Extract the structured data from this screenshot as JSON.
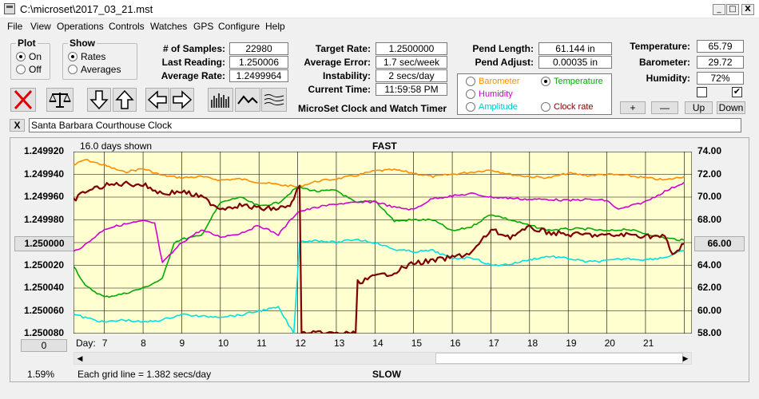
{
  "window": {
    "title": "C:\\microset\\2017_03_21.mst",
    "minimize": "_",
    "maximize": "□",
    "close": "X"
  },
  "menu": [
    "File",
    "View",
    "Operations",
    "Controls",
    "Watches",
    "GPS",
    "Configure",
    "Help"
  ],
  "plot": {
    "title": "Plot",
    "on": "On",
    "off": "Off",
    "selected": "On"
  },
  "show": {
    "title": "Show",
    "rates": "Rates",
    "averages": "Averages",
    "selected": "Rates"
  },
  "stats": {
    "samples_label": "# of Samples:",
    "samples": "22980",
    "last_reading_label": "Last Reading:",
    "last_reading": "1.250006",
    "average_rate_label": "Average Rate:",
    "average_rate": "1.2499964",
    "target_rate_label": "Target Rate:",
    "target_rate": "1.2500000",
    "average_error_label": "Average Error:",
    "average_error": "1.7 sec/week",
    "instability_label": "Instability:",
    "instability": "2 secs/day",
    "current_time_label": "Current Time:",
    "current_time": "11:59:58 PM",
    "pend_length_label": "Pend Length:",
    "pend_length": "61.144 in",
    "pend_adjust_label": "Pend Adjust:",
    "pend_adjust": "0.00035 in",
    "temperature_label": "Temperature:",
    "temperature": "65.79",
    "barometer_label": "Barometer:",
    "barometer": "29.72",
    "humidity_label": "Humidity:",
    "humidity": "72%"
  },
  "app_name": "MicroSet Clock and Watch Timer",
  "legend": {
    "barometer": "Barometer",
    "temperature": "Temperature",
    "humidity": "Humidity",
    "amplitude": "Amplitude",
    "clock_rate": "Clock rate",
    "selected": "Temperature"
  },
  "colors": {
    "barometer": "#ff8c00",
    "temperature": "#00aa00",
    "humidity": "#d000d0",
    "amplitude": "#00e0e0",
    "clock_rate": "#800000",
    "plot_bg": "#ffffd0",
    "grid": "#000000"
  },
  "scale_buttons": {
    "plus": "+",
    "minus": "—",
    "up": "Up",
    "down": "Down"
  },
  "checkboxes": {
    "left_checked": false,
    "right_checked": true,
    "right_mark": "✔"
  },
  "clock_name": "Santa Barbara Courthouse Clock",
  "clear_button": "X",
  "chart": {
    "days_shown": "16.0 days shown",
    "fast_label": "FAST",
    "slow_label": "SLOW",
    "grid_note": "Each grid line = 1.382 secs/day",
    "left_ticks": [
      "1.249920",
      "1.249940",
      "1.249960",
      "1.249980",
      "1.250000",
      "1.250020",
      "1.250040",
      "1.250060",
      "1.250080"
    ],
    "right_ticks": [
      "74.00",
      "72.00",
      "70.00",
      "68.00",
      "66.00",
      "64.00",
      "62.00",
      "60.00",
      "58.00"
    ],
    "left_center_button": "1.250000",
    "right_center_button": "66.00",
    "bottom_left_button": "0",
    "percent": "1.59%",
    "day_prefix": "Day:",
    "days": [
      "7",
      "8",
      "9",
      "10",
      "11",
      "12",
      "13",
      "14",
      "15",
      "16",
      "17",
      "18",
      "19",
      "20",
      "21"
    ]
  },
  "chart_data": {
    "type": "line",
    "xlabel": "Day:",
    "x_range": [
      6.2,
      22.2
    ],
    "left_axis": {
      "ylim": [
        1.24992,
        1.25008
      ],
      "inverted": true
    },
    "right_axis": {
      "ylim": [
        58,
        74
      ]
    },
    "series": [
      {
        "name": "Barometer",
        "axis": "right",
        "color": "#ff8c00",
        "x": [
          6.2,
          6.5,
          7.0,
          7.5,
          8.0,
          8.5,
          9.0,
          9.5,
          10.0,
          10.5,
          11.0,
          11.5,
          12.0,
          12.5,
          13.0,
          13.5,
          14.0,
          14.5,
          15.0,
          15.5,
          16.0,
          16.5,
          17.0,
          17.5,
          18.0,
          18.5,
          19.0,
          19.5,
          20.0,
          20.5,
          21.0,
          21.5,
          22.0
        ],
        "y": [
          72.8,
          73.3,
          72.8,
          72.2,
          72.5,
          71.9,
          71.7,
          71.8,
          71.5,
          71.6,
          71.3,
          71.1,
          70.9,
          71.4,
          71.6,
          71.9,
          72.3,
          72.4,
          72.1,
          71.8,
          72.0,
          72.2,
          72.4,
          72.0,
          71.8,
          71.7,
          72.1,
          71.9,
          72.0,
          71.9,
          71.7,
          71.5,
          71.8
        ]
      },
      {
        "name": "Temperature",
        "axis": "right",
        "color": "#00aa00",
        "x": [
          6.2,
          6.5,
          7.0,
          7.5,
          8.0,
          8.5,
          8.8,
          9.0,
          9.5,
          10.0,
          10.5,
          11.0,
          11.5,
          12.0,
          12.5,
          13.0,
          13.5,
          14.0,
          14.5,
          15.0,
          15.5,
          16.0,
          16.5,
          17.0,
          17.5,
          18.0,
          18.5,
          19.0,
          19.5,
          20.0,
          20.5,
          21.0,
          21.5,
          22.0
        ],
        "y": [
          64.0,
          62.2,
          61.2,
          61.5,
          62.0,
          62.8,
          66.0,
          66.3,
          66.6,
          69.5,
          70.0,
          69.2,
          69.5,
          70.9,
          70.5,
          70.6,
          69.5,
          69.7,
          67.9,
          68.0,
          68.0,
          67.0,
          67.4,
          68.5,
          68.0,
          67.5,
          67.1,
          67.2,
          67.2,
          67.0,
          67.2,
          66.8,
          66.4,
          66.2
        ]
      },
      {
        "name": "Humidity",
        "axis": "right",
        "color": "#d000d0",
        "x": [
          6.2,
          6.5,
          7.0,
          7.5,
          8.0,
          8.3,
          8.5,
          9.0,
          9.5,
          10.0,
          10.5,
          11.0,
          11.5,
          12.0,
          12.5,
          13.0,
          13.5,
          14.0,
          14.5,
          15.0,
          15.5,
          16.0,
          16.5,
          17.0,
          17.5,
          18.0,
          18.5,
          19.0,
          19.5,
          20.0,
          20.3,
          21.0,
          21.5,
          22.0
        ],
        "y": [
          65.2,
          65.8,
          67.2,
          67.6,
          67.9,
          67.7,
          64.2,
          66.0,
          67.1,
          66.5,
          66.8,
          67.5,
          66.7,
          68.7,
          69.1,
          69.4,
          69.5,
          69.6,
          69.1,
          68.9,
          69.9,
          70.1,
          70.3,
          70.0,
          69.9,
          69.8,
          69.8,
          69.7,
          69.8,
          69.7,
          68.9,
          69.6,
          70.5,
          71.3
        ]
      },
      {
        "name": "Amplitude",
        "axis": "right",
        "color": "#00e0e0",
        "x": [
          6.2,
          6.5,
          7.0,
          7.5,
          8.0,
          8.5,
          9.0,
          9.5,
          10.0,
          10.5,
          11.0,
          11.5,
          11.9,
          12.05,
          12.5,
          13.0,
          13.5,
          14.0,
          14.5,
          15.0,
          15.5,
          16.0,
          16.5,
          17.0,
          17.5,
          18.0,
          18.5,
          19.0,
          19.5,
          20.0,
          20.5,
          21.0,
          21.5,
          22.0
        ],
        "y": [
          59.7,
          59.4,
          59.0,
          59.2,
          59.0,
          59.2,
          59.7,
          59.5,
          59.5,
          59.6,
          60.0,
          60.3,
          58.0,
          66.1,
          66.2,
          66.0,
          66.3,
          66.0,
          65.4,
          65.2,
          65.3,
          64.6,
          64.7,
          64.0,
          64.1,
          64.5,
          64.8,
          64.6,
          64.3,
          64.4,
          64.6,
          64.5,
          64.7,
          65.3
        ]
      },
      {
        "name": "Clock rate",
        "axis": "left",
        "color": "#800000",
        "x": [
          6.2,
          6.5,
          7.0,
          7.5,
          8.0,
          8.5,
          9.0,
          9.5,
          10.0,
          10.5,
          11.0,
          11.5,
          11.8,
          11.9,
          12.05,
          12.1,
          13.5,
          13.55,
          14.0,
          14.5,
          15.0,
          15.5,
          16.0,
          16.5,
          17.0,
          17.5,
          18.0,
          18.5,
          19.0,
          19.5,
          20.0,
          20.5,
          21.0,
          21.5,
          21.7,
          22.0
        ],
        "y": [
          1.249963,
          1.249955,
          1.24995,
          1.249948,
          1.249949,
          1.249957,
          1.249955,
          1.24996,
          1.24997,
          1.249967,
          1.24997,
          1.24997,
          1.249968,
          1.24996,
          1.24995,
          1.25008,
          1.25008,
          1.250035,
          1.25003,
          1.250026,
          1.250018,
          1.250016,
          1.250013,
          1.250009,
          1.249989,
          1.249995,
          1.249987,
          1.249991,
          1.249993,
          1.249993,
          1.249994,
          1.249993,
          1.249994,
          1.249995,
          1.250011,
          1.250001
        ]
      }
    ]
  }
}
